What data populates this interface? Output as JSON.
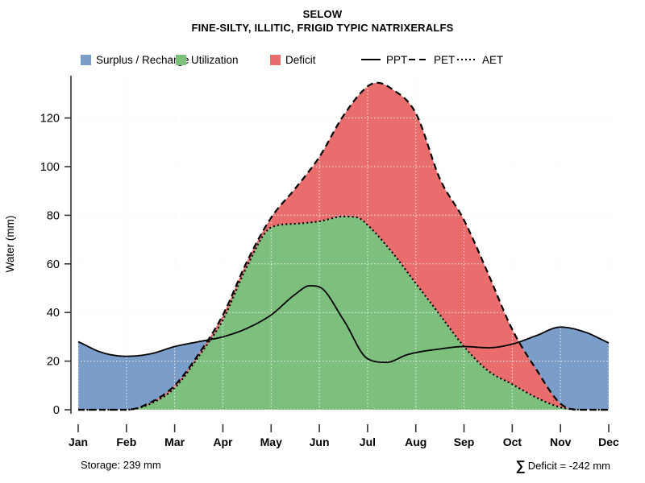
{
  "title": "SELOW",
  "subtitle": "FINE-SILTY, ILLITIC, FRIGID TYPIC NATRIXERALFS",
  "legend": {
    "areas": [
      {
        "label": "Surplus / Recharge",
        "color": "#7A9DC9"
      },
      {
        "label": "Utilization",
        "color": "#7DC07D"
      },
      {
        "label": "Deficit",
        "color": "#E96D6D"
      }
    ],
    "lines": [
      {
        "label": "PPT",
        "style": "solid"
      },
      {
        "label": "PET",
        "style": "dashed"
      },
      {
        "label": "AET",
        "style": "dotted"
      }
    ]
  },
  "axes": {
    "ylabel": "Water (mm)",
    "yticks": [
      0,
      20,
      40,
      60,
      80,
      100,
      120
    ],
    "ylim": [
      0,
      140
    ],
    "months": [
      "Jan",
      "Feb",
      "Mar",
      "Apr",
      "May",
      "Jun",
      "Jul",
      "Aug",
      "Sep",
      "Oct",
      "Nov",
      "Dec"
    ]
  },
  "annotations": {
    "storage": "Storage: 239 mm",
    "sigma": "∑",
    "deficit_text": "Deficit = -242 mm"
  },
  "chart_data": {
    "type": "area",
    "title": "SELOW",
    "subtitle": "FINE-SILTY, ILLITIC, FRIGID TYPIC NATRIXERALFS",
    "xlabel": "",
    "ylabel": "Water (mm)",
    "ylim": [
      0,
      140
    ],
    "x_unit": "month index (0=Jan ... 11=Dec)",
    "categories": [
      "Jan",
      "Feb",
      "Mar",
      "Apr",
      "May",
      "Jun",
      "Jul",
      "Aug",
      "Sep",
      "Oct",
      "Nov",
      "Dec"
    ],
    "grid": true,
    "legend_position": "top",
    "monthly_values": {
      "PPT": [
        28,
        22,
        26,
        30,
        39,
        50.5,
        21,
        23.5,
        26,
        27,
        34,
        27.5
      ],
      "PET": [
        0,
        0,
        10,
        39,
        79,
        104,
        133,
        122,
        78,
        33,
        2.5,
        0
      ],
      "AET": [
        0,
        0,
        9,
        37,
        75,
        77.5,
        76,
        52,
        26,
        10.5,
        1,
        0
      ]
    },
    "series": [
      {
        "name": "PPT",
        "style": "solid",
        "color": "#000000",
        "points": [
          [
            0,
            28
          ],
          [
            0.5,
            23.5
          ],
          [
            1,
            22
          ],
          [
            1.5,
            23
          ],
          [
            2,
            26
          ],
          [
            2.5,
            28
          ],
          [
            3,
            30
          ],
          [
            3.5,
            33.5
          ],
          [
            4,
            39
          ],
          [
            4.5,
            47.5
          ],
          [
            4.8,
            51
          ],
          [
            5,
            50.5
          ],
          [
            5.5,
            37
          ],
          [
            6,
            21
          ],
          [
            6.4,
            19.5
          ],
          [
            6.8,
            22.5
          ],
          [
            7,
            23.5
          ],
          [
            7.5,
            25
          ],
          [
            8,
            26
          ],
          [
            8.5,
            25.5
          ],
          [
            9,
            27
          ],
          [
            9.5,
            30.5
          ],
          [
            10,
            34
          ],
          [
            10.5,
            32
          ],
          [
            11,
            27.5
          ]
        ]
      },
      {
        "name": "PET",
        "style": "dashed",
        "color": "#000000",
        "points": [
          [
            0,
            0
          ],
          [
            1,
            0
          ],
          [
            1.5,
            3
          ],
          [
            2,
            10
          ],
          [
            2.5,
            23
          ],
          [
            3,
            39
          ],
          [
            3.5,
            61
          ],
          [
            4,
            79
          ],
          [
            4.5,
            91
          ],
          [
            5,
            104
          ],
          [
            5.5,
            121
          ],
          [
            6,
            133
          ],
          [
            6.2,
            134.5
          ],
          [
            6.5,
            132
          ],
          [
            7,
            122
          ],
          [
            7.5,
            95
          ],
          [
            8,
            78
          ],
          [
            8.5,
            56
          ],
          [
            9,
            33
          ],
          [
            9.5,
            16.5
          ],
          [
            10,
            2.5
          ],
          [
            10.4,
            0
          ],
          [
            11,
            0
          ]
        ]
      },
      {
        "name": "AET",
        "style": "dotted",
        "color": "#000000",
        "points": [
          [
            0,
            0
          ],
          [
            1,
            0
          ],
          [
            1.5,
            2.5
          ],
          [
            2,
            9
          ],
          [
            2.5,
            22
          ],
          [
            3,
            37
          ],
          [
            3.5,
            59
          ],
          [
            4,
            75
          ],
          [
            4.5,
            76.5
          ],
          [
            5,
            77.5
          ],
          [
            5.5,
            79.5
          ],
          [
            5.8,
            79
          ],
          [
            6,
            76
          ],
          [
            6.5,
            65
          ],
          [
            7,
            52
          ],
          [
            7.5,
            39
          ],
          [
            8,
            26
          ],
          [
            8.5,
            16
          ],
          [
            9,
            10.5
          ],
          [
            9.5,
            5
          ],
          [
            10,
            1
          ],
          [
            10.5,
            0
          ],
          [
            11,
            0
          ]
        ]
      }
    ],
    "areas": [
      {
        "name": "Surplus / Recharge",
        "between": [
          "PPT",
          "PET"
        ],
        "where": "PPT > PET",
        "color": "#7A9DC9"
      },
      {
        "name": "Utilization",
        "between": [
          "AET",
          "zero"
        ],
        "color": "#7DC07D"
      },
      {
        "name": "Deficit",
        "between": [
          "PET",
          "AET"
        ],
        "color": "#E96D6D"
      }
    ],
    "annotations": [
      "Storage: 239 mm",
      "∑ Deficit = -242 mm"
    ]
  }
}
